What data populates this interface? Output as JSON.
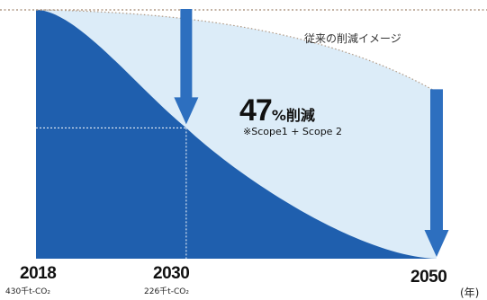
{
  "chart_data": {
    "type": "area",
    "x": [
      2018,
      2030,
      2050
    ],
    "series": [
      {
        "values": [
          430,
          226,
          0
        ]
      }
    ],
    "reference_line_label": "従来の削減イメージ",
    "reduction_value": "47",
    "reduction_suffix": "%削減",
    "reduction_note": "※Scope1 + Scope 2",
    "x_tick_labels": [
      "2018",
      "2030",
      "2050"
    ],
    "x_tick_sublabels": [
      "430千t-CO₂",
      "226千t-CO₂"
    ],
    "x_unit": "(年)",
    "grid": false,
    "colors": {
      "actual_fill": "#1f5fae",
      "conventional_fill": "#dcecf8",
      "arrow": "#2d6fbf",
      "reference_line": "#b09a86",
      "guide": "#ffffff"
    }
  }
}
